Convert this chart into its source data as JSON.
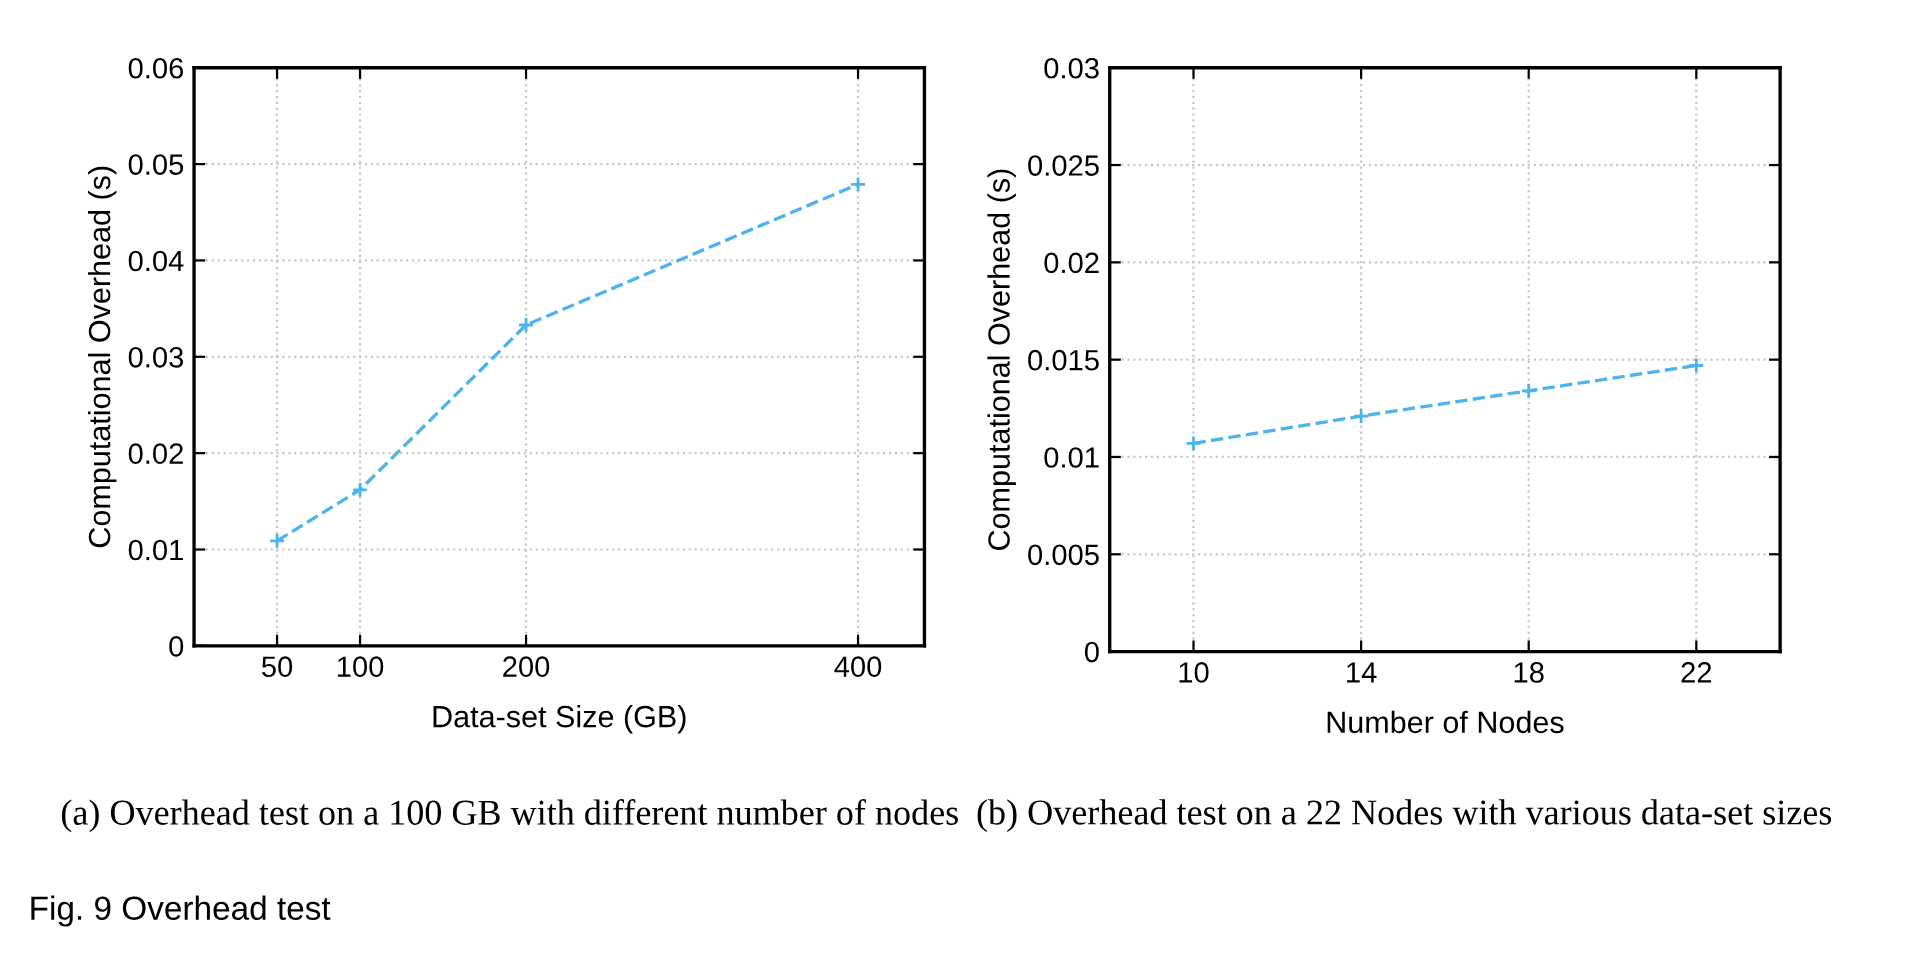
{
  "chart_data": [
    {
      "type": "line",
      "xlabel": "Data-set Size (GB)",
      "ylabel": "Computational Overhead (s)",
      "x": [
        50,
        100,
        200,
        400
      ],
      "series": [
        {
          "color": "#4db3ec",
          "values": [
            0.0109,
            0.0162,
            0.0333,
            0.0479
          ]
        }
      ],
      "xlim": [
        0,
        440
      ],
      "xticks": [
        50,
        100,
        200,
        400
      ],
      "ylim": [
        0,
        0.06
      ],
      "yticks": [
        0,
        0.01,
        0.02,
        0.03,
        0.04,
        0.05,
        0.06
      ],
      "grid": true,
      "marker": "cross",
      "line_style": "dashed",
      "annotations": [
        "(a) Overhead test on a 100 GB with different number of nodes",
        "Fig. 9 Overhead test"
      ]
    },
    {
      "type": "line",
      "xlabel": "Number of Nodes",
      "ylabel": "Computational Overhead (s)",
      "x": [
        10,
        14,
        18,
        22
      ],
      "series": [
        {
          "color": "#4db3ec",
          "values": [
            0.0107,
            0.0121,
            0.0134,
            0.0147
          ]
        }
      ],
      "xlim": [
        8,
        24
      ],
      "xticks": [
        10,
        14,
        18,
        22
      ],
      "ylim": [
        0,
        0.03
      ],
      "yticks": [
        0,
        0.005,
        0.01,
        0.015,
        0.02,
        0.025,
        0.03
      ],
      "grid": true,
      "marker": "cross",
      "line_style": "dashed",
      "annotations": [
        "(b) Overhead test on a 22 Nodes with various data-set sizes"
      ]
    }
  ]
}
